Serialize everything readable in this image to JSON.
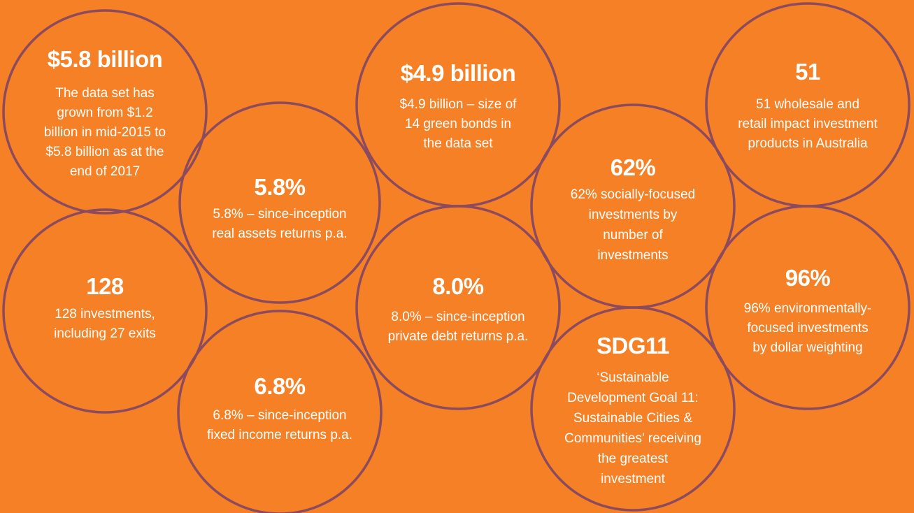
{
  "circles": [
    {
      "title": "$5.8 billion",
      "lines": [
        "The data set has",
        "grown from $1.2",
        "billion in mid-2015 to",
        "$5.8 billion as at the",
        "end of 2017"
      ]
    },
    {
      "title": "5.8%",
      "lines": [
        "5.8% – since-inception",
        "real assets returns p.a."
      ]
    },
    {
      "title": "128",
      "lines": [
        "128 investments,",
        "including 27 exits"
      ]
    },
    {
      "title": "6.8%",
      "lines": [
        "6.8% – since-inception",
        "fixed income returns p.a."
      ]
    },
    {
      "title": "$4.9 billion",
      "lines": [
        "$4.9 billion – size of",
        "14 green bonds in",
        "the data set"
      ]
    },
    {
      "title": "8.0%",
      "lines": [
        "8.0% – since-inception",
        "private debt returns p.a."
      ]
    },
    {
      "title": "62%",
      "lines": [
        "62% socially-focused",
        "investments by",
        "number of",
        "investments"
      ]
    },
    {
      "title": "51",
      "lines": [
        "51 wholesale and",
        "retail impact investment",
        "products in Australia"
      ]
    },
    {
      "title": "96%",
      "lines": [
        "96% environmentally-",
        "focused investments",
        "by dollar weighting"
      ]
    },
    {
      "title": "SDG11",
      "lines": [
        "‘Sustainable",
        "Development Goal 11:",
        "Sustainable Cities &",
        "Communities' receiving",
        "the greatest",
        "investment"
      ]
    }
  ]
}
